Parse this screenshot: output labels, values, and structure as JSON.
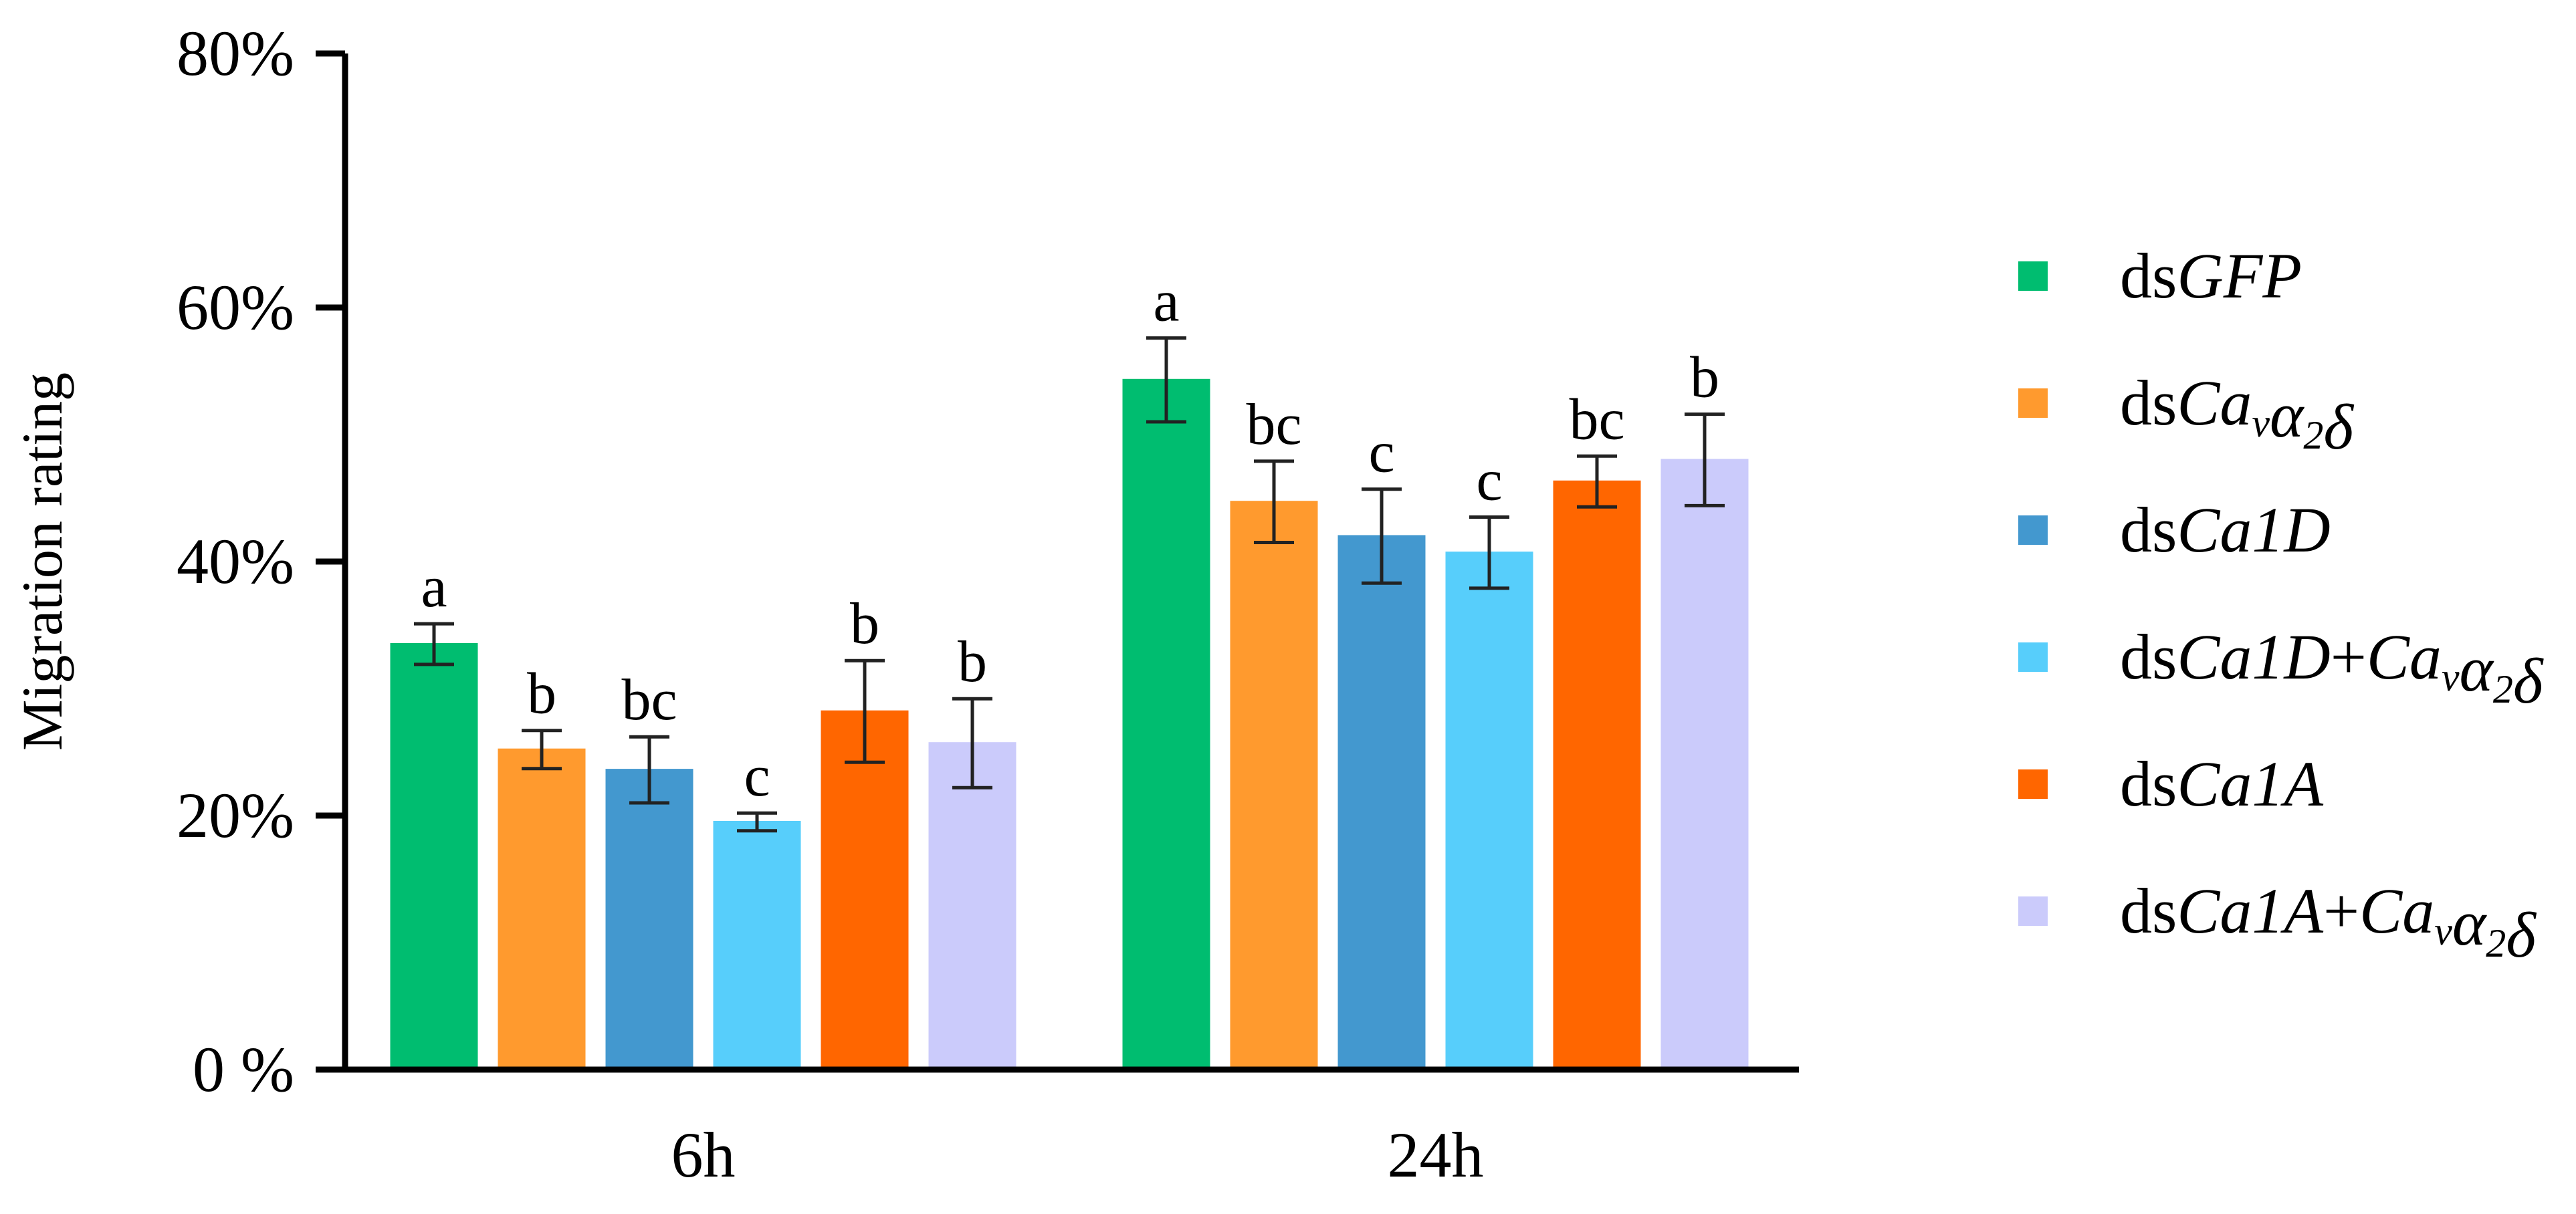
{
  "chart_data": {
    "type": "bar",
    "title": "",
    "xlabel": "",
    "ylabel": "Migration rating",
    "ylim": [
      0,
      80
    ],
    "yticks": [
      0,
      20,
      40,
      60,
      80
    ],
    "ytick_labels": [
      "0 %",
      "20%",
      "40%",
      "60%",
      "80%"
    ],
    "grid": false,
    "legend_position": "right",
    "categories": [
      "6h",
      "24h"
    ],
    "series": [
      {
        "name": "dsGFP",
        "legend_parts": [
          {
            "text": "ds",
            "italic": false
          },
          {
            "text": "GFP",
            "italic": true
          }
        ],
        "color": "#00BD70",
        "values": [
          33.5,
          54.3
        ],
        "errors": [
          1.6,
          3.3
        ],
        "letters": [
          "a",
          "a"
        ]
      },
      {
        "name": "dsCavα2δ",
        "legend_parts": [
          {
            "text": "ds",
            "italic": false
          },
          {
            "text": "Ca",
            "italic": true
          },
          {
            "text": "v",
            "italic": true,
            "sub": true
          },
          {
            "text": "α",
            "italic": true
          },
          {
            "text": "2",
            "italic": true,
            "sub": true
          },
          {
            "text": "δ",
            "italic": true
          }
        ],
        "color": "#FF9A2E",
        "values": [
          25.2,
          44.7
        ],
        "errors": [
          1.5,
          3.2
        ],
        "letters": [
          "b",
          "bc"
        ]
      },
      {
        "name": "dsCa1D",
        "legend_parts": [
          {
            "text": "ds",
            "italic": false
          },
          {
            "text": "Ca1D",
            "italic": true
          }
        ],
        "color": "#4398CF",
        "values": [
          23.6,
          42.0
        ],
        "errors": [
          2.6,
          3.7
        ],
        "letters": [
          "bc",
          "c"
        ]
      },
      {
        "name": "dsCa1D+Cavα2δ",
        "legend_parts": [
          {
            "text": "ds",
            "italic": false
          },
          {
            "text": "Ca1D",
            "italic": true
          },
          {
            "text": "+",
            "italic": false
          },
          {
            "text": "Ca",
            "italic": true
          },
          {
            "text": "v",
            "italic": true,
            "sub": true
          },
          {
            "text": "α",
            "italic": true
          },
          {
            "text": "2",
            "italic": true,
            "sub": true
          },
          {
            "text": "δ",
            "italic": true
          }
        ],
        "color": "#57CEFB",
        "values": [
          19.5,
          40.7
        ],
        "errors": [
          0.7,
          2.8
        ],
        "letters": [
          "c",
          "c"
        ]
      },
      {
        "name": "dsCa1A",
        "legend_parts": [
          {
            "text": "ds",
            "italic": false
          },
          {
            "text": "Ca1A",
            "italic": true
          }
        ],
        "color": "#FF6600",
        "values": [
          28.2,
          46.3
        ],
        "errors": [
          4.0,
          2.0
        ],
        "letters": [
          "b",
          "bc"
        ]
      },
      {
        "name": "dsCa1A+Cavα2δ",
        "legend_parts": [
          {
            "text": "ds",
            "italic": false
          },
          {
            "text": "Ca1A",
            "italic": true
          },
          {
            "text": "+",
            "italic": false
          },
          {
            "text": "Ca",
            "italic": true
          },
          {
            "text": "v",
            "italic": true,
            "sub": true
          },
          {
            "text": "α",
            "italic": true
          },
          {
            "text": "2",
            "italic": true,
            "sub": true
          },
          {
            "text": "δ",
            "italic": true
          }
        ],
        "color": "#CBCBFB",
        "values": [
          25.7,
          48.0
        ],
        "errors": [
          3.5,
          3.6
        ],
        "letters": [
          "b",
          "b"
        ]
      }
    ]
  }
}
